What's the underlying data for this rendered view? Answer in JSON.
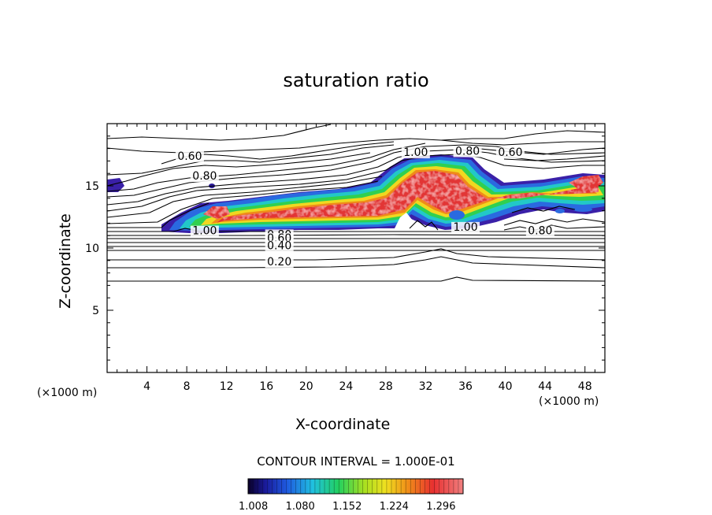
{
  "chart_data": {
    "type": "contour",
    "title": "saturation ratio",
    "xlabel": "X-coordinate",
    "ylabel": "Z-coordinate",
    "x_unit": "(×1000 m)",
    "xlim": [
      0,
      50
    ],
    "ylim": [
      0,
      20
    ],
    "x_ticks": [
      4,
      8,
      12,
      16,
      20,
      24,
      28,
      32,
      36,
      40,
      44,
      48
    ],
    "y_ticks": [
      5,
      10,
      15
    ],
    "contour_interval_text": "CONTOUR INTERVAL = 1.000E-01",
    "contour_labels": [
      {
        "text": "0.60",
        "x": 8.3,
        "z": 17.1
      },
      {
        "text": "0.80",
        "x": 9.8,
        "z": 15.5
      },
      {
        "text": "1.00",
        "x": 31.0,
        "z": 17.4
      },
      {
        "text": "0.80",
        "x": 36.2,
        "z": 17.5
      },
      {
        "text": "0.60",
        "x": 40.5,
        "z": 17.4
      },
      {
        "text": "1.00",
        "x": 9.8,
        "z": 11.1
      },
      {
        "text": "0.80",
        "x": 17.3,
        "z": 10.8
      },
      {
        "text": "0.60",
        "x": 17.3,
        "z": 10.5
      },
      {
        "text": "0.40",
        "x": 17.3,
        "z": 9.9
      },
      {
        "text": "0.20",
        "x": 17.3,
        "z": 8.6
      },
      {
        "text": "1.00",
        "x": 36.0,
        "z": 11.4
      },
      {
        "text": "0.80",
        "x": 43.5,
        "z": 11.1
      }
    ],
    "colorbar": {
      "colormap": "rainbow",
      "tick_labels": [
        "1.008",
        "1.080",
        "1.152",
        "1.224",
        "1.296"
      ],
      "range": [
        1.0,
        1.33
      ]
    },
    "contour_levels_z": [
      {
        "level": 0.2,
        "z": 8.4
      },
      {
        "level": 0.3,
        "z": 8.9
      },
      {
        "level": 0.4,
        "z": 9.7
      },
      {
        "level": 0.5,
        "z": 10.0
      },
      {
        "level": 0.6,
        "z": 10.3
      },
      {
        "level": 0.7,
        "z": 10.6
      },
      {
        "level": 0.8,
        "z": 10.8
      }
    ]
  }
}
